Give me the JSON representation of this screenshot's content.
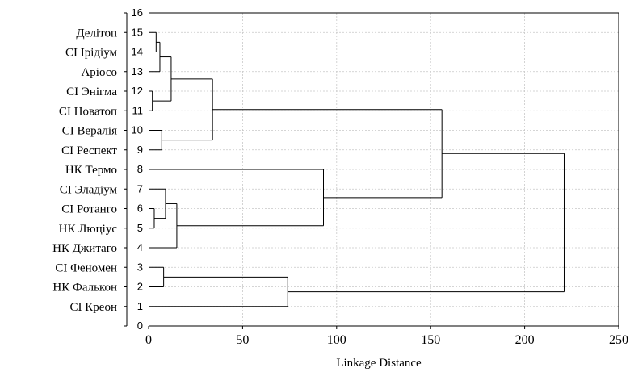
{
  "chart_data": {
    "type": "dendrogram",
    "xlabel": "Linkage Distance",
    "xlim": [
      0,
      250
    ],
    "ylim": [
      0,
      16
    ],
    "xticks": [
      0,
      50,
      100,
      150,
      200,
      250
    ],
    "yticks": [
      0,
      1,
      2,
      3,
      4,
      5,
      6,
      7,
      8,
      9,
      10,
      11,
      12,
      13,
      14,
      15,
      16
    ],
    "grid": true,
    "leaves": [
      {
        "pos": 1,
        "label": "СІ Креон"
      },
      {
        "pos": 2,
        "label": "НК Фалькон"
      },
      {
        "pos": 3,
        "label": "СІ Феномен"
      },
      {
        "pos": 4,
        "label": "НК Джитаго"
      },
      {
        "pos": 5,
        "label": "НК Люціус"
      },
      {
        "pos": 6,
        "label": "СІ Ротанго"
      },
      {
        "pos": 7,
        "label": "СІ Эладіум"
      },
      {
        "pos": 8,
        "label": "НК Термо"
      },
      {
        "pos": 9,
        "label": "СІ Респект"
      },
      {
        "pos": 10,
        "label": "СІ Вералія"
      },
      {
        "pos": 11,
        "label": "СІ Новатоп"
      },
      {
        "pos": 12,
        "label": "СІ Энігма"
      },
      {
        "pos": 13,
        "label": "Аріосо"
      },
      {
        "pos": 14,
        "label": "СІ Ірідіум"
      },
      {
        "pos": 15,
        "label": "Делітоп"
      }
    ],
    "merges": [
      {
        "id": "m1",
        "a": 11,
        "b": 12,
        "distance": 2
      },
      {
        "id": "m2",
        "a": 5,
        "b": 6,
        "distance": 3
      },
      {
        "id": "m3",
        "a": 14,
        "b": 15,
        "distance": 4
      },
      {
        "id": "m4",
        "a": "m3",
        "b": 13,
        "distance": 6
      },
      {
        "id": "m5",
        "a": 9,
        "b": 10,
        "distance": 7
      },
      {
        "id": "m6",
        "a": 2,
        "b": 3,
        "distance": 8
      },
      {
        "id": "m7",
        "a": "m2",
        "b": 7,
        "distance": 9
      },
      {
        "id": "m8",
        "a": "m1",
        "b": "m4",
        "distance": 12
      },
      {
        "id": "m9",
        "a": 4,
        "b": "m7",
        "distance": 15
      },
      {
        "id": "m10",
        "a": "m5",
        "b": "m8",
        "distance": 34
      },
      {
        "id": "m11",
        "a": 1,
        "b": "m6",
        "distance": 74
      },
      {
        "id": "m12",
        "a": "m9",
        "b": 8,
        "distance": 93
      },
      {
        "id": "m13",
        "a": "m12",
        "b": "m10",
        "distance": 156
      },
      {
        "id": "m14",
        "a": "m11",
        "b": "m13",
        "distance": 221
      }
    ]
  }
}
